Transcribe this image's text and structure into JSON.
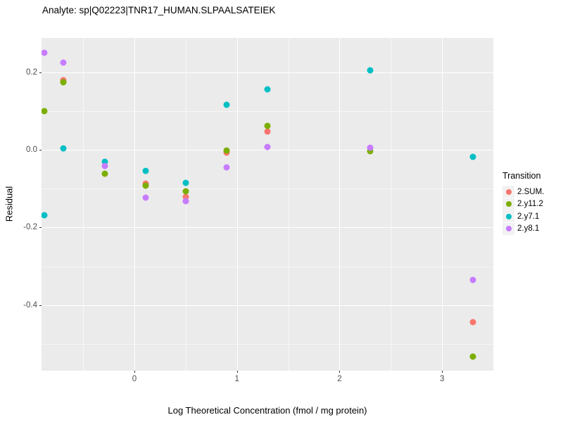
{
  "title": "Analyte: sp|Q02223|TNR17_HUMAN.SLPAALSATEIEK",
  "xlabel": "Log Theoretical Concentration (fmol / mg protein)",
  "ylabel": "Residual",
  "legend": {
    "title": "Transition",
    "position": "right"
  },
  "colors": {
    "panel_bg": "#EBEBEB",
    "grid": "#FFFFFF",
    "tick_text": "#4D4D4D",
    "legend_key_bg": "#F2F2F2"
  },
  "chart_data": {
    "type": "scatter",
    "title": "Analyte: sp|Q02223|TNR17_HUMAN.SLPAALSATEIEK",
    "xlabel": "Log Theoretical Concentration (fmol / mg protein)",
    "ylabel": "Residual",
    "grid": true,
    "legend_position": "right",
    "xlim": [
      -0.906,
      3.5
    ],
    "ylim": [
      -0.569,
      0.288
    ],
    "x_ticks": [
      0,
      1,
      2,
      3
    ],
    "x_tick_labels": [
      "0",
      "1",
      "2",
      "3"
    ],
    "y_ticks": [
      0.2,
      0.0,
      -0.2,
      -0.4
    ],
    "y_tick_labels": [
      "0.2",
      "0.0",
      "-0.2",
      "-0.4"
    ],
    "x_minor_ticks": [
      -0.5,
      0.5,
      1.5,
      2.5
    ],
    "y_minor_ticks": [
      0.1,
      -0.1,
      -0.3,
      -0.5
    ],
    "series": [
      {
        "name": "2.SUM.",
        "color": "#F8766D",
        "points": [
          [
            -0.69,
            0.179
          ],
          [
            0.11,
            -0.087
          ],
          [
            0.5,
            -0.121
          ],
          [
            0.9,
            -0.008
          ],
          [
            1.3,
            0.047
          ],
          [
            3.3,
            -0.444
          ]
        ]
      },
      {
        "name": "2.y11.2",
        "color": "#7CAE00",
        "points": [
          [
            -0.88,
            0.1
          ],
          [
            -0.69,
            0.173
          ],
          [
            -0.29,
            -0.061
          ],
          [
            0.11,
            -0.093
          ],
          [
            0.5,
            -0.107
          ],
          [
            0.9,
            -0.001
          ],
          [
            1.3,
            0.061
          ],
          [
            2.3,
            -0.004
          ],
          [
            3.3,
            -0.533
          ]
        ]
      },
      {
        "name": "2.y7.1",
        "color": "#00BFC4",
        "points": [
          [
            -0.88,
            -0.168
          ],
          [
            -0.69,
            0.004
          ],
          [
            -0.29,
            -0.031
          ],
          [
            0.11,
            -0.054
          ],
          [
            0.5,
            -0.085
          ],
          [
            0.9,
            0.116
          ],
          [
            1.3,
            0.155
          ],
          [
            2.3,
            0.205
          ],
          [
            3.3,
            -0.019
          ]
        ]
      },
      {
        "name": "2.y8.1",
        "color": "#C77CFF",
        "points": [
          [
            -0.88,
            0.25
          ],
          [
            -0.69,
            0.224
          ],
          [
            -0.29,
            -0.042
          ],
          [
            0.11,
            -0.124
          ],
          [
            0.5,
            -0.133
          ],
          [
            0.9,
            -0.045
          ],
          [
            1.3,
            0.007
          ],
          [
            2.3,
            0.005
          ],
          [
            3.3,
            -0.335
          ]
        ]
      }
    ]
  }
}
